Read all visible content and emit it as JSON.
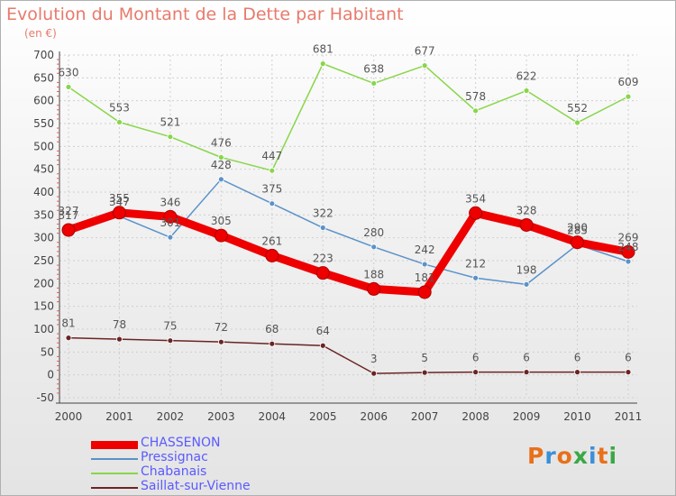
{
  "title": "Evolution du Montant de la Dette par Habitant",
  "unit_label": "(en €)",
  "brand": "Proxiti",
  "chart_data": {
    "type": "line",
    "title": "Evolution du Montant de la Dette par Habitant",
    "ylabel": "(en €)",
    "xlabel": "",
    "x": [
      "2000",
      "2001",
      "2002",
      "2003",
      "2004",
      "2005",
      "2006",
      "2007",
      "2008",
      "2009",
      "2010",
      "2011"
    ],
    "ylim": [
      -50,
      700
    ],
    "yticks": [
      -50,
      0,
      50,
      100,
      150,
      200,
      250,
      300,
      350,
      400,
      450,
      500,
      550,
      600,
      650,
      700
    ],
    "grid": true,
    "legend_position": "bottom-left",
    "series": [
      {
        "name": "CHASSENON",
        "color": "#ee0000",
        "values": [
          317,
          355,
          346,
          305,
          261,
          223,
          188,
          181,
          354,
          328,
          290,
          269
        ]
      },
      {
        "name": "Pressignac",
        "color": "#5a92c8",
        "values": [
          327,
          347,
          301,
          428,
          375,
          322,
          280,
          242,
          212,
          198,
          285,
          248
        ]
      },
      {
        "name": "Chabanais",
        "color": "#88d64a",
        "values": [
          630,
          553,
          521,
          476,
          447,
          681,
          638,
          677,
          578,
          622,
          552,
          609
        ]
      },
      {
        "name": "Saillat-sur-Vienne",
        "color": "#6b2424",
        "values": [
          81,
          78,
          75,
          72,
          68,
          64,
          3,
          5,
          6,
          6,
          6,
          6
        ]
      }
    ]
  }
}
